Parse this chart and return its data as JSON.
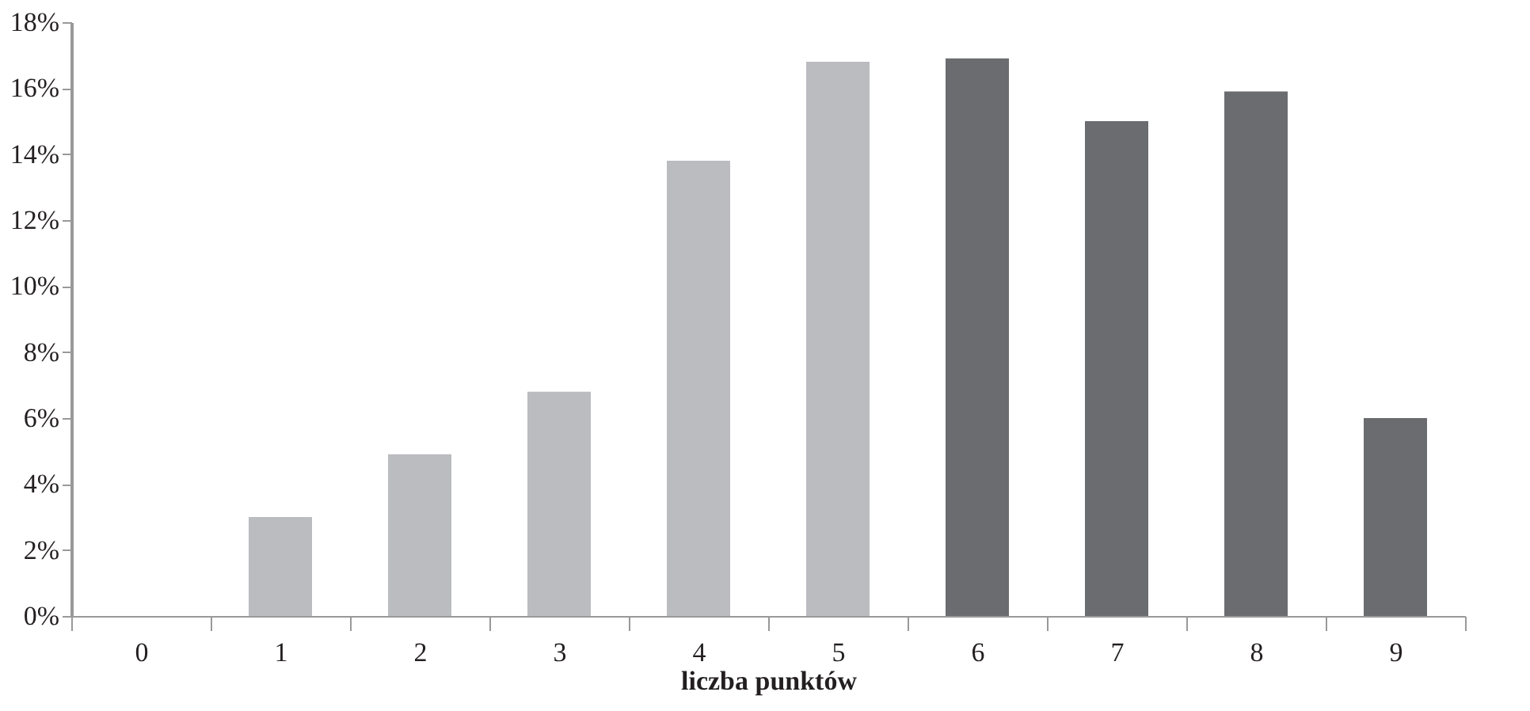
{
  "chart_data": {
    "type": "bar",
    "xlabel": "liczba punktów",
    "categories": [
      "0",
      "1",
      "2",
      "3",
      "4",
      "5",
      "6",
      "7",
      "8",
      "9"
    ],
    "values": [
      0,
      3.0,
      4.9,
      6.8,
      13.8,
      16.8,
      16.9,
      15.0,
      15.9,
      6.0
    ],
    "colors": [
      "#bbbcc0",
      "#bbbcc0",
      "#bbbcc0",
      "#bbbcc0",
      "#bbbcc0",
      "#bbbcc0",
      "#6b6c70",
      "#6b6c70",
      "#6b6c70",
      "#6b6c70"
    ],
    "ylim": [
      0,
      18
    ],
    "yticks": [
      {
        "value": 0,
        "label": "0%"
      },
      {
        "value": 2,
        "label": "2%"
      },
      {
        "value": 4,
        "label": "4%"
      },
      {
        "value": 6,
        "label": "6%"
      },
      {
        "value": 8,
        "label": "8%"
      },
      {
        "value": 10,
        "label": "10%"
      },
      {
        "value": 12,
        "label": "12%"
      },
      {
        "value": 14,
        "label": "14%"
      },
      {
        "value": 16,
        "label": "16%"
      },
      {
        "value": 18,
        "label": "18%"
      }
    ],
    "grid": false
  }
}
